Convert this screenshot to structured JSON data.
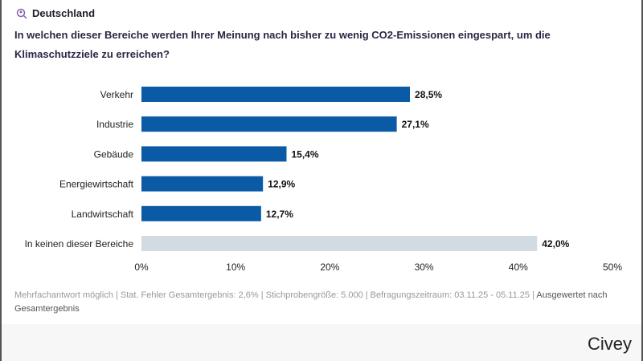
{
  "location": "Deutschland",
  "question": "In welchen dieser Bereiche werden Ihrer Meinung nach bisher zu wenig CO2-Emissionen eingespart, um die Klimaschutzziele zu erreichen?",
  "footer": {
    "meta": "Mehrfachantwort möglich | Stat. Fehler Gesamtergebnis: 2,6% | Stichprobengröße: 5.000 | Befragungszeitraum: 03.11.25 - 05.11.25 | ",
    "evaluated": "Ausgewertet nach Gesamtergebnis"
  },
  "brand": "Civey",
  "colors": {
    "bar": "#0b5aa5",
    "neutral_bar": "#d3dbe2",
    "location_icon": "#8a5fb0"
  },
  "chart_data": {
    "type": "bar",
    "orientation": "horizontal",
    "categories": [
      "Verkehr",
      "Industrie",
      "Gebäude",
      "Energiewirtschaft",
      "Landwirtschaft",
      "In keinen dieser Bereiche"
    ],
    "values": [
      28.5,
      27.1,
      15.4,
      12.9,
      12.7,
      42.0
    ],
    "labels": [
      "28,5%",
      "27,1%",
      "15,4%",
      "12,9%",
      "12,7%",
      "42,0%"
    ],
    "xlim": [
      0,
      50
    ],
    "xticks": [
      "0%",
      "10%",
      "20%",
      "30%",
      "40%",
      "50%"
    ],
    "grid": false
  }
}
